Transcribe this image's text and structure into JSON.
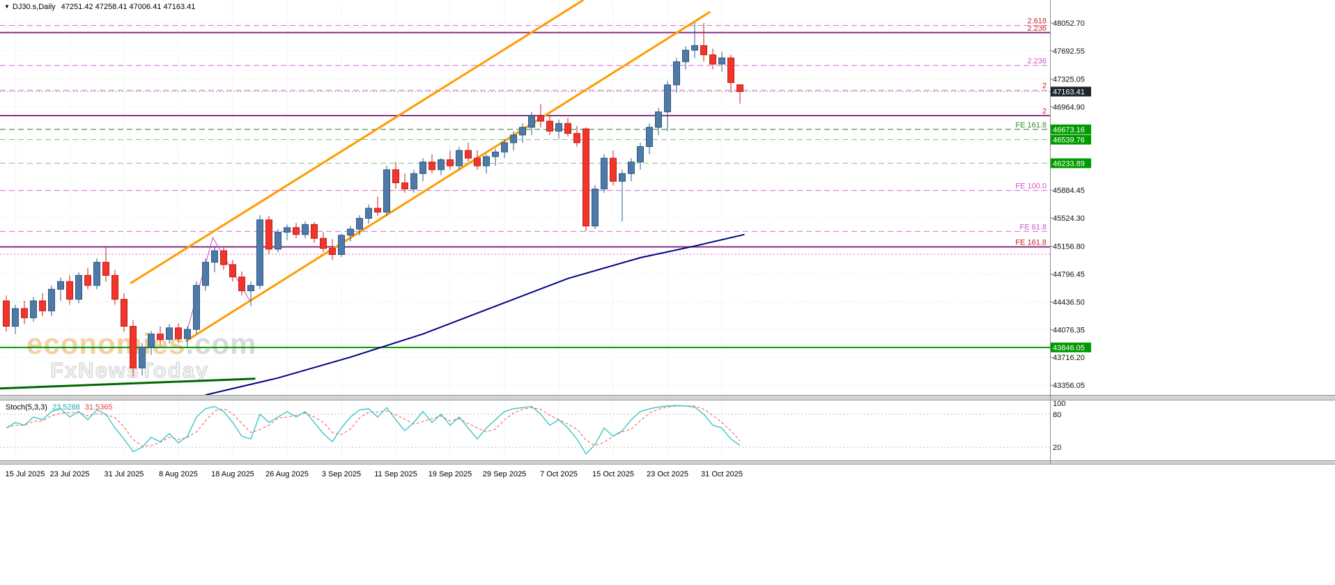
{
  "symbol_bar": {
    "marker": "▼",
    "symbol": "DJ30.s,Daily",
    "ohlc": "47251.42 47258.41 47006.41 47163.41"
  },
  "watermark": {
    "brand": "economies",
    "brand_suffix": ".com",
    "subtitle": "FxNewsToday"
  },
  "chart_data": {
    "type": "candlestick",
    "title": "DJ30.s,Daily",
    "y_axis": {
      "price_at_top": 48350.7,
      "price_at_bottom": 43230.7,
      "grid_prices": [
        48052.7,
        47692.55,
        47325.05,
        46964.9,
        45884.45,
        45524.3,
        45156.8,
        44796.45,
        44436.5,
        44076.35,
        43716.2,
        43356.05
      ],
      "highlighted_labels": [
        {
          "price": 47163.41,
          "text": "47163.41",
          "bg": "#20252e",
          "fg": "#ffffff"
        },
        {
          "price": 46673.16,
          "text": "46673.16",
          "bg": "#009b00",
          "fg": "#ffffff"
        },
        {
          "price": 46539.76,
          "text": "46539.76",
          "bg": "#009b00",
          "fg": "#ffffff"
        },
        {
          "price": 46233.89,
          "text": "46233.89",
          "bg": "#009b00",
          "fg": "#ffffff"
        },
        {
          "price": 43846.05,
          "text": "43846.05",
          "bg": "#009b00",
          "fg": "#ffffff"
        }
      ]
    },
    "x_axis": {
      "labels": [
        {
          "i": 1,
          "t": "15 Jul 2025"
        },
        {
          "i": 7,
          "t": "23 Jul 2025"
        },
        {
          "i": 13,
          "t": "31 Jul 2025"
        },
        {
          "i": 19,
          "t": "8 Aug 2025"
        },
        {
          "i": 25,
          "t": "18 Aug 2025"
        },
        {
          "i": 31,
          "t": "26 Aug 2025"
        },
        {
          "i": 37,
          "t": "3 Sep 2025"
        },
        {
          "i": 43,
          "t": "11 Sep 2025"
        },
        {
          "i": 49,
          "t": "19 Sep 2025"
        },
        {
          "i": 55,
          "t": "29 Sep 2025"
        },
        {
          "i": 61,
          "t": "7 Oct 2025"
        },
        {
          "i": 67,
          "t": "15 Oct 2025"
        },
        {
          "i": 73,
          "t": "23 Oct 2025"
        },
        {
          "i": 79,
          "t": "31 Oct 2025"
        }
      ]
    },
    "candles": {
      "up_color": "#4f79a7",
      "up_stroke": "#2e5984",
      "down_color": "#f0352b",
      "down_stroke": "#c21f17",
      "ohlc": [
        [
          44450,
          44520,
          44050,
          44120
        ],
        [
          44120,
          44400,
          44020,
          44350
        ],
        [
          44350,
          44450,
          44150,
          44230
        ],
        [
          44230,
          44500,
          44180,
          44450
        ],
        [
          44450,
          44550,
          44250,
          44320
        ],
        [
          44320,
          44650,
          44250,
          44600
        ],
        [
          44600,
          44750,
          44450,
          44700
        ],
        [
          44700,
          44780,
          44400,
          44470
        ],
        [
          44470,
          44820,
          44420,
          44780
        ],
        [
          44780,
          44880,
          44600,
          44650
        ],
        [
          44650,
          45000,
          44600,
          44950
        ],
        [
          44950,
          45160,
          44700,
          44780
        ],
        [
          44780,
          44850,
          44400,
          44470
        ],
        [
          44470,
          44550,
          44050,
          44120
        ],
        [
          44120,
          44200,
          43470,
          43580
        ],
        [
          43580,
          43900,
          43480,
          43850
        ],
        [
          43850,
          44060,
          43750,
          44020
        ],
        [
          44020,
          44120,
          43880,
          43950
        ],
        [
          43950,
          44150,
          43900,
          44100
        ],
        [
          44100,
          44160,
          43900,
          43960
        ],
        [
          43960,
          44120,
          43850,
          44080
        ],
        [
          44080,
          44700,
          44020,
          44650
        ],
        [
          44650,
          45000,
          44580,
          44950
        ],
        [
          44950,
          45150,
          44820,
          45100
        ],
        [
          45100,
          45140,
          44850,
          44920
        ],
        [
          44920,
          44980,
          44700,
          44760
        ],
        [
          44760,
          44830,
          44520,
          44580
        ],
        [
          44580,
          44700,
          44380,
          44650
        ],
        [
          44650,
          45560,
          44600,
          45500
        ],
        [
          45500,
          45550,
          45050,
          45120
        ],
        [
          45120,
          45380,
          45080,
          45340
        ],
        [
          45340,
          45440,
          45240,
          45400
        ],
        [
          45400,
          45460,
          45260,
          45310
        ],
        [
          45310,
          45480,
          45260,
          45440
        ],
        [
          45440,
          45470,
          45200,
          45260
        ],
        [
          45260,
          45340,
          45080,
          45130
        ],
        [
          45130,
          45250,
          44980,
          45050
        ],
        [
          45050,
          45320,
          45020,
          45300
        ],
        [
          45300,
          45420,
          45220,
          45380
        ],
        [
          45380,
          45560,
          45300,
          45520
        ],
        [
          45520,
          45700,
          45450,
          45650
        ],
        [
          45650,
          45800,
          45550,
          45600
        ],
        [
          45600,
          46200,
          45550,
          46150
        ],
        [
          46150,
          46250,
          45900,
          45980
        ],
        [
          45980,
          46100,
          45850,
          45900
        ],
        [
          45900,
          46150,
          45850,
          46100
        ],
        [
          46100,
          46300,
          46000,
          46250
        ],
        [
          46250,
          46350,
          46100,
          46150
        ],
        [
          46150,
          46300,
          46080,
          46280
        ],
        [
          46280,
          46400,
          46150,
          46200
        ],
        [
          46200,
          46450,
          46150,
          46400
        ],
        [
          46400,
          46500,
          46250,
          46300
        ],
        [
          46300,
          46400,
          46150,
          46200
        ],
        [
          46200,
          46350,
          46100,
          46320
        ],
        [
          46320,
          46420,
          46200,
          46380
        ],
        [
          46380,
          46550,
          46300,
          46500
        ],
        [
          46500,
          46650,
          46400,
          46600
        ],
        [
          46600,
          46750,
          46500,
          46700
        ],
        [
          46700,
          46900,
          46600,
          46850
        ],
        [
          46850,
          47000,
          46700,
          46780
        ],
        [
          46780,
          46850,
          46600,
          46650
        ],
        [
          46650,
          46800,
          46550,
          46750
        ],
        [
          46750,
          46820,
          46580,
          46620
        ],
        [
          46620,
          46720,
          46450,
          46500
        ],
        [
          46680,
          46700,
          45350,
          45420
        ],
        [
          45420,
          45950,
          45380,
          45900
        ],
        [
          45900,
          46350,
          45850,
          46300
        ],
        [
          46300,
          46400,
          45950,
          46000
        ],
        [
          46000,
          46150,
          45480,
          46100
        ],
        [
          46100,
          46300,
          46000,
          46250
        ],
        [
          46250,
          46500,
          46150,
          46450
        ],
        [
          46450,
          46750,
          46350,
          46700
        ],
        [
          46700,
          46950,
          46600,
          46900
        ],
        [
          46900,
          47300,
          46650,
          47250
        ],
        [
          47250,
          47600,
          47150,
          47550
        ],
        [
          47550,
          47750,
          47450,
          47700
        ],
        [
          47700,
          48060,
          47600,
          47760
        ],
        [
          47760,
          48050,
          47550,
          47640
        ],
        [
          47640,
          47720,
          47450,
          47520
        ],
        [
          47520,
          47680,
          47420,
          47600
        ],
        [
          47600,
          47640,
          47150,
          47280
        ],
        [
          47251.42,
          47258.41,
          47006.41,
          47163.41
        ]
      ]
    },
    "levels": [
      {
        "price": 48020,
        "style": "dashed",
        "color": "#d466d4",
        "width": 1,
        "label": "2.618",
        "label_color": "#cc2222"
      },
      {
        "price": 47928,
        "style": "solid",
        "color": "#8a2e8a",
        "width": 2,
        "label": "2.236",
        "label_color": "#cc2222"
      },
      {
        "price": 47502,
        "style": "dashed",
        "color": "#d466d4",
        "width": 1,
        "label": "2.236",
        "label_color": "#cc55cc"
      },
      {
        "price": 47180,
        "style": "dashed",
        "color": "#d466d4",
        "width": 1,
        "label": "2",
        "label_color": "#cc2222"
      },
      {
        "price": 47163.41,
        "style": "dotted",
        "color": "#9a9a9a",
        "width": 1
      },
      {
        "price": 46852,
        "style": "solid",
        "color": "#8a2e8a",
        "width": 2,
        "label": "2",
        "label_color": "#cc2222"
      },
      {
        "price": 46673.16,
        "style": "dashed",
        "color": "#2f7d2f",
        "width": 1,
        "label": "FE 161.8",
        "label_color": "#2e8b2e"
      },
      {
        "price": 46539.76,
        "style": "dashed",
        "color": "#82c282",
        "width": 1
      },
      {
        "price": 46233.89,
        "style": "dashed",
        "color": "#82c282",
        "width": 1
      },
      {
        "price": 45880,
        "style": "dashed",
        "color": "#d466d4",
        "width": 1,
        "label": "FE 100.0",
        "label_color": "#cc55cc"
      },
      {
        "price": 45350,
        "style": "dashed",
        "color": "#d466d4",
        "width": 1,
        "label": "FE 61.8",
        "label_color": "#cc55cc"
      },
      {
        "price": 45150,
        "style": "solid",
        "color": "#8a2e8a",
        "width": 2,
        "label": "FE 161.8",
        "label_color": "#cc2222"
      },
      {
        "price": 45055,
        "style": "dotted",
        "color": "#d466d4",
        "width": 1
      },
      {
        "price": 43846.05,
        "style": "solid",
        "color": "#009900",
        "width": 2
      }
    ],
    "trendlines": [
      {
        "name": "channel-upper",
        "color": "#ff9c00",
        "width": 3,
        "pts": [
          [
            13.7,
            44676
          ],
          [
            63.7,
            48350
          ]
        ]
      },
      {
        "name": "channel-lower",
        "color": "#ff9c00",
        "width": 3,
        "pts": [
          [
            19.8,
            43926
          ],
          [
            77.7,
            48197
          ]
        ]
      },
      {
        "name": "ma-navy",
        "color": "#000080",
        "width": 2,
        "pts": [
          [
            22,
            43230
          ],
          [
            30,
            43450
          ],
          [
            38,
            43720
          ],
          [
            46,
            44020
          ],
          [
            54,
            44380
          ],
          [
            62,
            44740
          ],
          [
            70,
            45010
          ],
          [
            76,
            45160
          ],
          [
            81.5,
            45310
          ]
        ]
      },
      {
        "name": "trend-darkgreen",
        "color": "#006600",
        "width": 3,
        "pts": [
          [
            -0.7,
            43315
          ],
          [
            27.5,
            43440
          ]
        ]
      },
      {
        "name": "pattern-magenta",
        "color": "#cc44cc",
        "width": 1,
        "pts": [
          [
            19.8,
            43990
          ],
          [
            22.8,
            45270
          ],
          [
            26.9,
            44450
          ]
        ]
      }
    ],
    "stochastic": {
      "label": "Stoch(5,3,3)",
      "k_value": "23.5288",
      "d_value": "31.5365",
      "k_color": "#3cc7c7",
      "d_color": "#ff5050",
      "axis_labels": [
        100,
        80,
        20
      ],
      "guides": [
        80,
        20
      ],
      "k": [
        55,
        65,
        60,
        75,
        70,
        85,
        90,
        75,
        85,
        70,
        88,
        80,
        55,
        35,
        12,
        20,
        38,
        30,
        45,
        28,
        40,
        75,
        90,
        94,
        85,
        65,
        40,
        35,
        80,
        65,
        75,
        85,
        75,
        85,
        65,
        45,
        30,
        55,
        75,
        88,
        90,
        75,
        92,
        70,
        50,
        65,
        85,
        65,
        80,
        60,
        75,
        55,
        35,
        55,
        70,
        85,
        90,
        92,
        94,
        80,
        60,
        70,
        55,
        35,
        8,
        25,
        55,
        40,
        50,
        70,
        85,
        90,
        93,
        95,
        96,
        95,
        93,
        80,
        60,
        55,
        35,
        23.53
      ],
      "d": [
        55,
        60,
        60,
        67,
        68,
        77,
        82,
        83,
        83,
        77,
        81,
        79,
        74,
        57,
        34,
        22,
        23,
        29,
        38,
        34,
        38,
        48,
        68,
        86,
        90,
        81,
        63,
        47,
        52,
        60,
        73,
        75,
        78,
        82,
        75,
        65,
        47,
        43,
        53,
        73,
        84,
        84,
        86,
        79,
        71,
        62,
        67,
        72,
        77,
        68,
        72,
        63,
        55,
        48,
        53,
        70,
        82,
        89,
        92,
        89,
        78,
        70,
        62,
        53,
        33,
        23,
        29,
        40,
        48,
        53,
        68,
        82,
        89,
        93,
        95,
        95,
        95,
        89,
        78,
        65,
        50,
        31.54
      ]
    }
  }
}
